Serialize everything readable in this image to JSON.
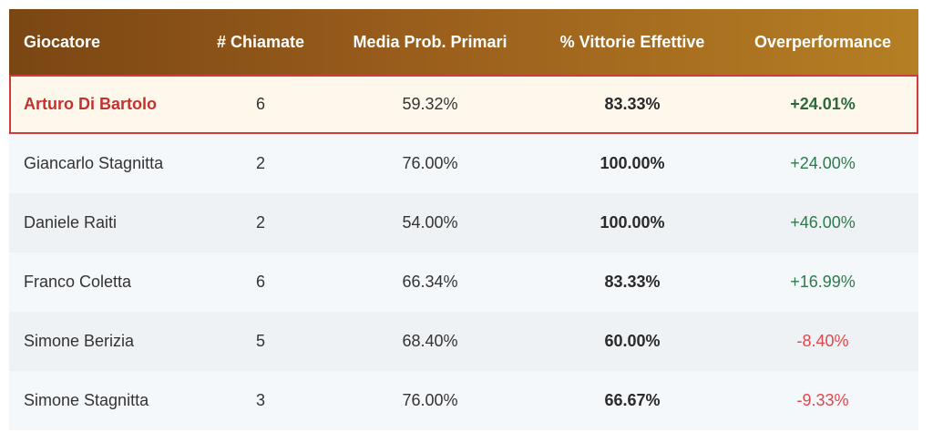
{
  "table": {
    "headers": [
      "Giocatore",
      "# Chiamate",
      "Media Prob. Primari",
      "% Vittorie Effettive",
      "Overperformance"
    ],
    "rows": [
      {
        "player": "Arturo Di Bartolo",
        "calls": "6",
        "avg_prob": "59.32%",
        "win_pct": "83.33%",
        "over": "+24.01%",
        "trend": "positive",
        "highlighted": true
      },
      {
        "player": "Giancarlo Stagnitta",
        "calls": "2",
        "avg_prob": "76.00%",
        "win_pct": "100.00%",
        "over": "+24.00%",
        "trend": "positive",
        "highlighted": false
      },
      {
        "player": "Daniele Raiti",
        "calls": "2",
        "avg_prob": "54.00%",
        "win_pct": "100.00%",
        "over": "+46.00%",
        "trend": "positive",
        "highlighted": false
      },
      {
        "player": "Franco Coletta",
        "calls": "6",
        "avg_prob": "66.34%",
        "win_pct": "83.33%",
        "over": "+16.99%",
        "trend": "positive",
        "highlighted": false
      },
      {
        "player": "Simone Berizia",
        "calls": "5",
        "avg_prob": "68.40%",
        "win_pct": "60.00%",
        "over": "-8.40%",
        "trend": "negative",
        "highlighted": false
      },
      {
        "player": "Simone Stagnitta",
        "calls": "3",
        "avg_prob": "76.00%",
        "win_pct": "66.67%",
        "over": "-9.33%",
        "trend": "negative",
        "highlighted": false
      }
    ]
  },
  "colors": {
    "header_gradient_start": "#7a4613",
    "header_gradient_end": "#b57f24",
    "highlight_border": "#d23b3b",
    "highlight_background": "#fdf8eb",
    "positive": "#2f7a4c",
    "negative": "#e0464a"
  }
}
